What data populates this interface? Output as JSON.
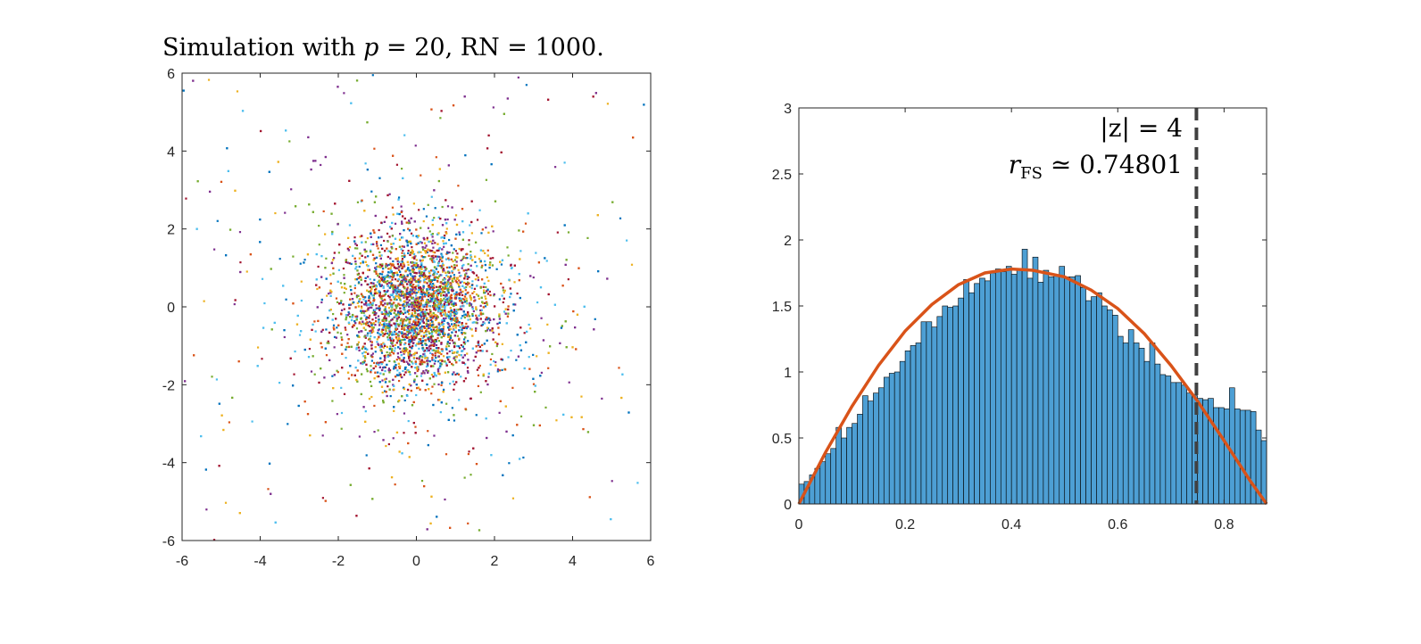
{
  "colors": {
    "bar_fill": "#4d9fd4",
    "bar_edge": "#000000",
    "fit_curve": "#d95319",
    "threshold_line": "#404040",
    "scatter_palette": [
      "#0072bd",
      "#d95319",
      "#edb120",
      "#7e2f8e",
      "#77ac30",
      "#4dbeee",
      "#a2142f"
    ]
  },
  "chart_data": [
    {
      "type": "scatter",
      "title": {
        "prefix": "Simulation with ",
        "p_symbol": "p",
        "p_part": " = 20, RN = 1000."
      },
      "xlim": [
        -6,
        6
      ],
      "ylim": [
        -6,
        6
      ],
      "xticks": [
        "-6",
        "-4",
        "-2",
        "0",
        "2",
        "4",
        "6"
      ],
      "yticks": [
        "-6",
        "-4",
        "-2",
        "0",
        "2",
        "4",
        "6"
      ],
      "series_count": 7,
      "distribution": "points concentrated around (0, 0), roughly standard normal cloud with heavy tails reaching the axis limits",
      "marker": "dot",
      "grid": false
    },
    {
      "type": "bar",
      "subtype": "histogram",
      "xlim": [
        0,
        0.88
      ],
      "ylim": [
        0,
        3
      ],
      "xticks": [
        "0",
        "0.2",
        "0.4",
        "0.6",
        "0.8"
      ],
      "yticks": [
        "0",
        "0.5",
        "1",
        "1.5",
        "2",
        "2.5",
        "3"
      ],
      "bin_width": 0.01,
      "bin_start": 0,
      "values": [
        0.15,
        0.17,
        0.22,
        0.27,
        0.32,
        0.38,
        0.42,
        0.58,
        0.5,
        0.58,
        0.61,
        0.68,
        0.82,
        0.78,
        0.84,
        0.88,
        0.96,
        0.99,
        1.0,
        1.08,
        1.16,
        1.2,
        1.22,
        1.38,
        1.38,
        1.34,
        1.42,
        1.5,
        1.49,
        1.5,
        1.56,
        1.7,
        1.6,
        1.67,
        1.71,
        1.69,
        1.75,
        1.78,
        1.76,
        1.8,
        1.74,
        1.78,
        1.93,
        1.71,
        1.87,
        1.68,
        1.77,
        1.72,
        1.73,
        1.8,
        1.72,
        1.72,
        1.73,
        1.64,
        1.54,
        1.57,
        1.6,
        1.5,
        1.47,
        1.43,
        1.27,
        1.22,
        1.32,
        1.22,
        1.18,
        1.08,
        1.22,
        1.06,
        0.98,
        0.97,
        0.92,
        0.92,
        0.9,
        0.84,
        0.82,
        0.8,
        0.79,
        0.8,
        0.73,
        0.73,
        0.72,
        0.88,
        0.72,
        0.71,
        0.71,
        0.7,
        0.56,
        0.48
      ],
      "fit_curve": {
        "type": "line",
        "shape": "concave, peaks near x = 0.44 at about 1.77, zero at 0 and 0.88",
        "x": [
          0,
          0.05,
          0.1,
          0.15,
          0.2,
          0.25,
          0.3,
          0.35,
          0.4,
          0.44,
          0.5,
          0.55,
          0.6,
          0.65,
          0.7,
          0.75,
          0.8,
          0.85,
          0.88
        ],
        "y": [
          0.0,
          0.39,
          0.74,
          1.05,
          1.31,
          1.51,
          1.66,
          1.75,
          1.78,
          1.77,
          1.72,
          1.62,
          1.48,
          1.29,
          1.05,
          0.78,
          0.48,
          0.17,
          0.0
        ]
      },
      "threshold": {
        "x": 0.74801,
        "style": "dashed",
        "label_line1": "|z| = 4",
        "label_line2_symbol": "r",
        "label_line2_sub": "FS",
        "label_line2_rest": " ≃ 0.74801"
      },
      "grid": false
    }
  ]
}
